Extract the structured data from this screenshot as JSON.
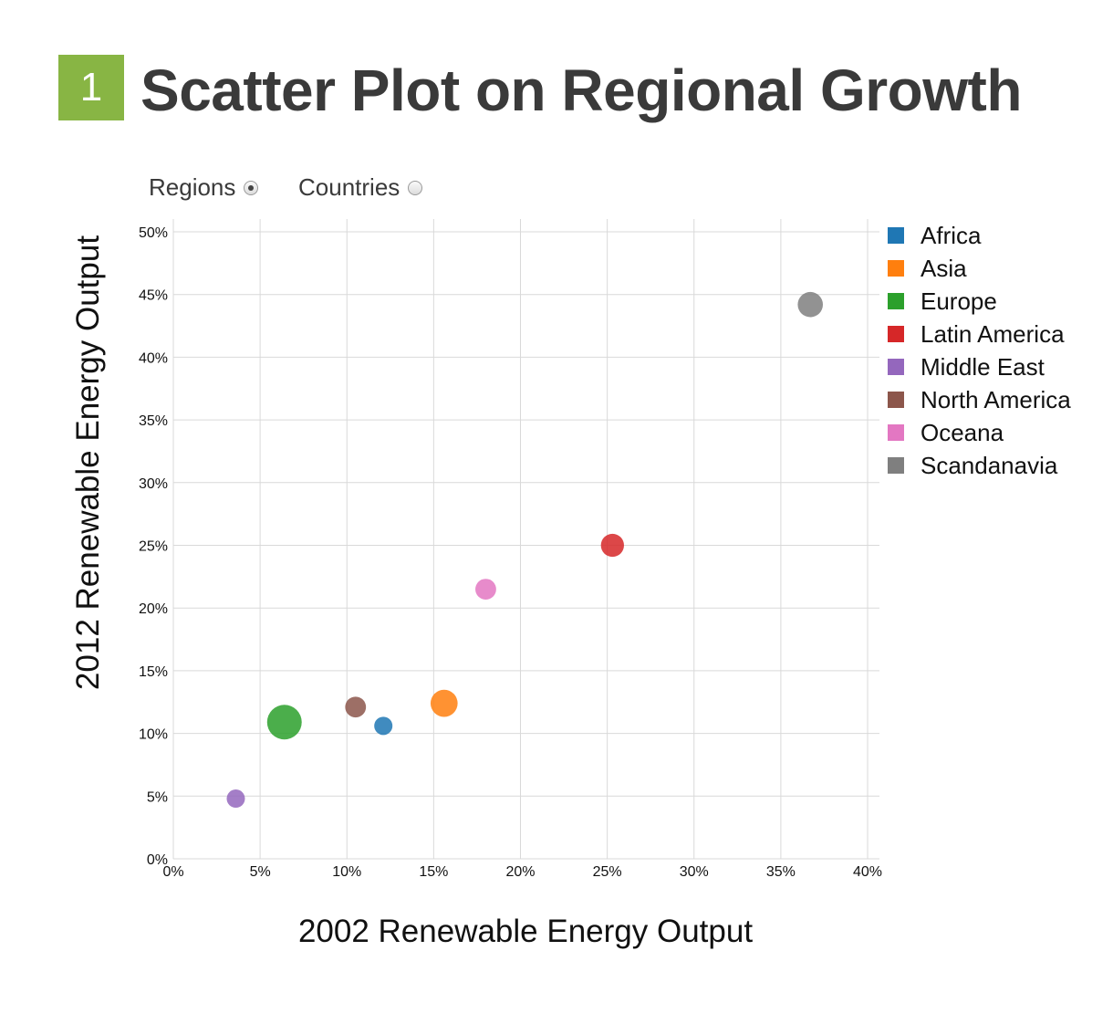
{
  "header": {
    "step_number": "1",
    "title": "Scatter Plot on Regional Growth"
  },
  "toggles": [
    {
      "label": "Regions",
      "checked": true
    },
    {
      "label": "Countries",
      "checked": false
    }
  ],
  "chart_data": {
    "type": "scatter",
    "xlabel": "2002 Renewable Energy Output",
    "ylabel": "2012 Renewable Energy Output",
    "xlim": [
      0,
      40
    ],
    "ylim": [
      0,
      50
    ],
    "x_ticks": [
      "0%",
      "5%",
      "10%",
      "15%",
      "20%",
      "25%",
      "30%",
      "35%",
      "40%"
    ],
    "y_ticks": [
      "0%",
      "5%",
      "10%",
      "15%",
      "20%",
      "25%",
      "30%",
      "35%",
      "40%",
      "45%",
      "50%"
    ],
    "grid": true,
    "legend_position": "right",
    "series": [
      {
        "name": "Africa",
        "color": "#1f77b4",
        "x": 12.1,
        "y": 10.6,
        "size": 1.0
      },
      {
        "name": "Asia",
        "color": "#ff7f0e",
        "x": 15.6,
        "y": 12.4,
        "size": 2.2
      },
      {
        "name": "Europe",
        "color": "#2ca02c",
        "x": 6.4,
        "y": 10.9,
        "size": 3.6
      },
      {
        "name": "Latin America",
        "color": "#d62728",
        "x": 25.3,
        "y": 25.0,
        "size": 1.6
      },
      {
        "name": "Middle East",
        "color": "#9467bd",
        "x": 3.6,
        "y": 4.8,
        "size": 1.0
      },
      {
        "name": "North America",
        "color": "#8c564b",
        "x": 10.5,
        "y": 12.1,
        "size": 1.3
      },
      {
        "name": "Oceana",
        "color": "#e377c2",
        "x": 18.0,
        "y": 21.5,
        "size": 1.3
      },
      {
        "name": "Scandanavia",
        "color": "#7f7f7f",
        "x": 36.7,
        "y": 44.2,
        "size": 1.9
      }
    ]
  }
}
